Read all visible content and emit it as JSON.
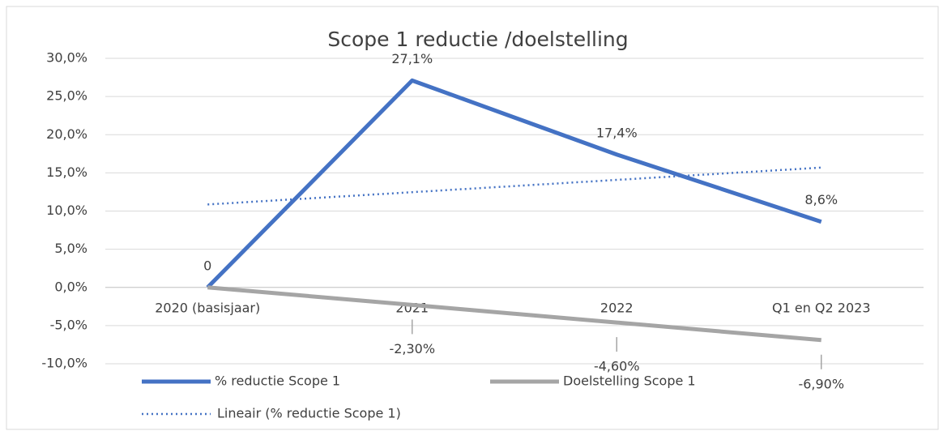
{
  "chart_data": {
    "type": "line",
    "title": "Scope 1 reductie /doelstelling",
    "categories": [
      "2020  (basisjaar)",
      "2021",
      "2022",
      "Q1 en Q2 2023"
    ],
    "series": [
      {
        "name": "% reductie Scope 1",
        "color": "#4472c4",
        "style": "solid",
        "values": [
          0,
          27.1,
          17.4,
          8.6
        ],
        "value_labels": [
          "0",
          "27,1%",
          "17,4%",
          "8,6%"
        ]
      },
      {
        "name": "Doelstelling Scope 1",
        "color": "#a5a5a5",
        "style": "solid",
        "values": [
          0,
          -2.3,
          -4.6,
          -6.9
        ],
        "value_labels": [
          null,
          "-2,30%",
          "-4,60%",
          "-6,90%"
        ]
      },
      {
        "name": "Lineair (% reductie Scope 1)",
        "color": "#4472c4",
        "style": "dotted",
        "values": [
          10.86,
          12.47,
          14.08,
          15.69
        ]
      }
    ],
    "ylim": [
      -10,
      30
    ],
    "yticks": [
      {
        "value": -10,
        "label": "-10,0%"
      },
      {
        "value": -5,
        "label": "-5,0%"
      },
      {
        "value": 0,
        "label": "0,0%"
      },
      {
        "value": 5,
        "label": "5,0%"
      },
      {
        "value": 10,
        "label": "10,0%"
      },
      {
        "value": 15,
        "label": "15,0%"
      },
      {
        "value": 20,
        "label": "20,0%"
      },
      {
        "value": 25,
        "label": "25,0%"
      },
      {
        "value": 30,
        "label": "30,0%"
      }
    ],
    "grid": true,
    "legend": "bottom"
  }
}
